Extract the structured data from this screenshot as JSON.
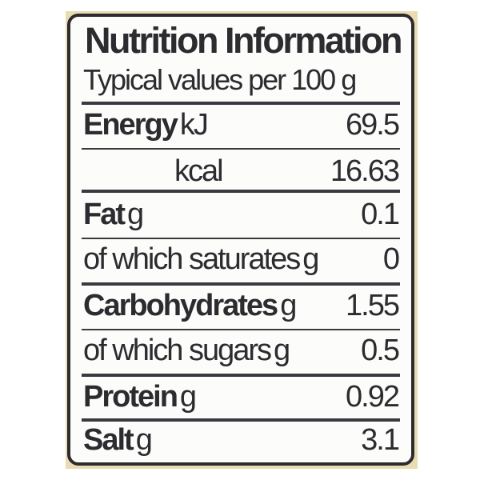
{
  "title": "Nutrition Information",
  "subtitle": "Typical values per 100 g",
  "rows": [
    {
      "name": "Energy",
      "unit": "kJ",
      "value": "69.5"
    },
    {
      "name": "",
      "unit": "kcal",
      "value": "16.63"
    },
    {
      "name": "Fat",
      "unit": "g",
      "value": "0.1"
    },
    {
      "name": "of which saturates",
      "unit": "g",
      "value": "0"
    },
    {
      "name": "Carbohydrates",
      "unit": "g",
      "value": "1.55"
    },
    {
      "name": "of which sugars",
      "unit": "g",
      "value": "0.5"
    },
    {
      "name": "Protein",
      "unit": "g",
      "value": "0.92"
    },
    {
      "name": "Salt",
      "unit": "g",
      "value": "3.1"
    }
  ],
  "colors": {
    "label_background": "#fcfcfa",
    "ink": "#2b2b30",
    "packaging": "#e9dcb2"
  }
}
